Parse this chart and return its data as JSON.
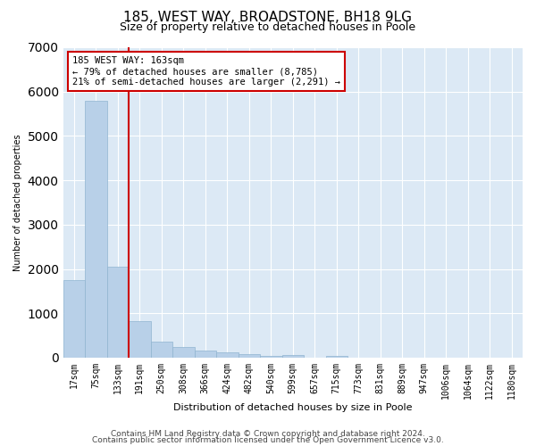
{
  "title1": "185, WEST WAY, BROADSTONE, BH18 9LG",
  "title2": "Size of property relative to detached houses in Poole",
  "xlabel": "Distribution of detached houses by size in Poole",
  "ylabel": "Number of detached properties",
  "categories": [
    "17sqm",
    "75sqm",
    "133sqm",
    "191sqm",
    "250sqm",
    "308sqm",
    "366sqm",
    "424sqm",
    "482sqm",
    "540sqm",
    "599sqm",
    "657sqm",
    "715sqm",
    "773sqm",
    "831sqm",
    "889sqm",
    "947sqm",
    "1006sqm",
    "1064sqm",
    "1122sqm",
    "1180sqm"
  ],
  "values": [
    1750,
    5800,
    2050,
    830,
    370,
    240,
    155,
    125,
    75,
    30,
    50,
    0,
    30,
    0,
    0,
    0,
    0,
    0,
    0,
    0,
    0
  ],
  "bar_color": "#b8d0e8",
  "bar_edge_color": "#90b4d0",
  "vline_color": "#cc0000",
  "annotation_text": "185 WEST WAY: 163sqm\n← 79% of detached houses are smaller (8,785)\n21% of semi-detached houses are larger (2,291) →",
  "annotation_box_color": "#ffffff",
  "annotation_box_edge": "#cc0000",
  "ylim": [
    0,
    7000
  ],
  "yticks": [
    0,
    1000,
    2000,
    3000,
    4000,
    5000,
    6000,
    7000
  ],
  "plot_bg_color": "#dce9f5",
  "footer1": "Contains HM Land Registry data © Crown copyright and database right 2024.",
  "footer2": "Contains public sector information licensed under the Open Government Licence v3.0.",
  "title1_fontsize": 11,
  "title2_fontsize": 9,
  "axis_fontsize": 7,
  "ylabel_fontsize": 7,
  "xlabel_fontsize": 8,
  "footer_fontsize": 6.5,
  "annotation_fontsize": 7.5
}
